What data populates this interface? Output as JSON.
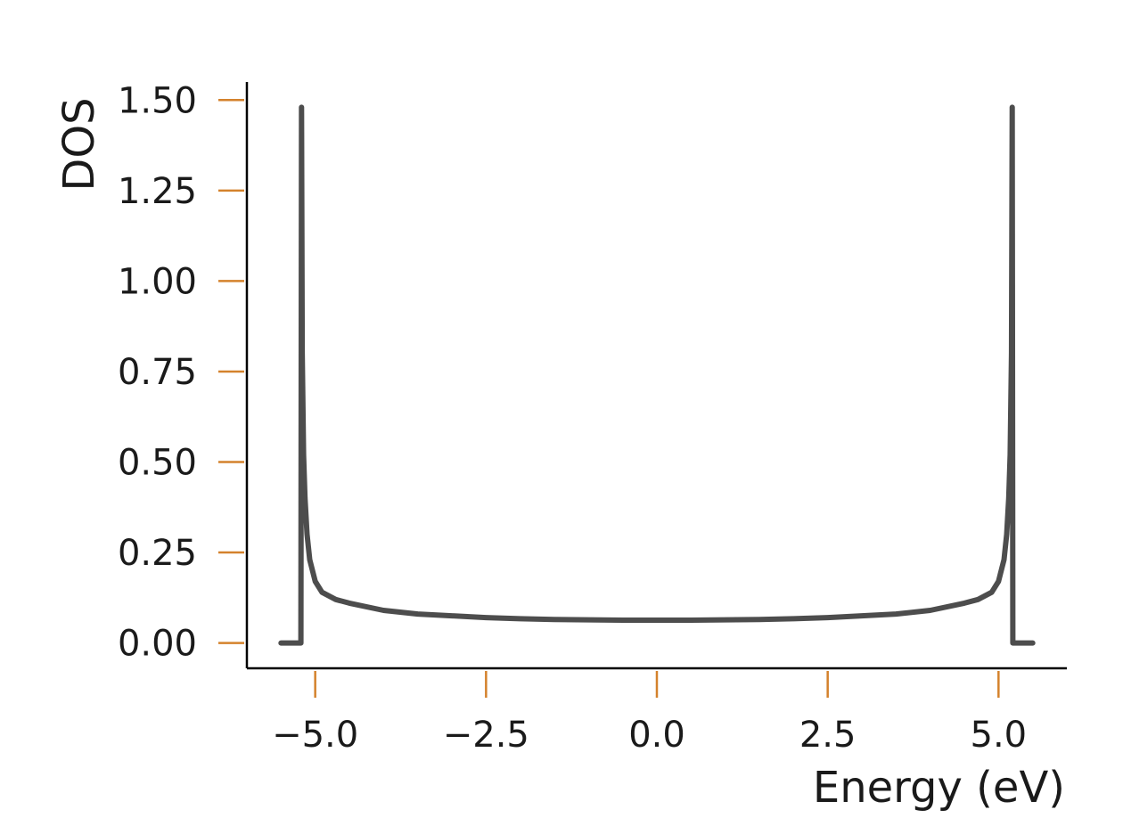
{
  "colors": {
    "line": "#4d4d4d",
    "tick": "#d4822c",
    "axis": "#000000",
    "text": "#1a1a1a"
  },
  "chart_data": {
    "type": "line",
    "title": "",
    "xlabel": "Energy (eV)",
    "ylabel": "DOS",
    "xlim": [
      -6.0,
      6.0
    ],
    "ylim": [
      -0.07,
      1.55
    ],
    "grid": false,
    "legend": "none",
    "x_ticks": [
      "−5.0",
      "−2.5",
      "0.0",
      "2.5",
      "5.0"
    ],
    "x_tick_values": [
      -5.0,
      -2.5,
      0.0,
      2.5,
      5.0
    ],
    "y_ticks": [
      "0.00",
      "0.25",
      "0.50",
      "0.75",
      "1.00",
      "1.25",
      "1.50"
    ],
    "y_tick_values": [
      0.0,
      0.25,
      0.5,
      0.75,
      1.0,
      1.25,
      1.5
    ],
    "series": [
      {
        "x": [
          -5.5,
          -5.3,
          -5.21,
          -5.2,
          -5.19,
          -5.17,
          -5.15,
          -5.12,
          -5.08,
          -5.0,
          -4.9,
          -4.7,
          -4.5,
          -4.0,
          -3.5,
          -3.0,
          -2.5,
          -2.0,
          -1.5,
          -1.0,
          -0.5,
          0.0,
          0.5,
          1.0,
          1.5,
          2.0,
          2.5,
          3.0,
          3.5,
          4.0,
          4.5,
          4.7,
          4.9,
          5.0,
          5.08,
          5.12,
          5.15,
          5.17,
          5.19,
          5.2,
          5.21,
          5.3,
          5.5
        ],
        "y": [
          0.0,
          0.0,
          0.0,
          1.48,
          0.8,
          0.52,
          0.4,
          0.3,
          0.23,
          0.17,
          0.14,
          0.12,
          0.11,
          0.09,
          0.08,
          0.075,
          0.07,
          0.067,
          0.065,
          0.064,
          0.063,
          0.063,
          0.063,
          0.064,
          0.065,
          0.067,
          0.07,
          0.075,
          0.08,
          0.09,
          0.11,
          0.12,
          0.14,
          0.17,
          0.23,
          0.3,
          0.4,
          0.52,
          0.8,
          1.48,
          0.0,
          0.0,
          0.0
        ]
      }
    ]
  }
}
